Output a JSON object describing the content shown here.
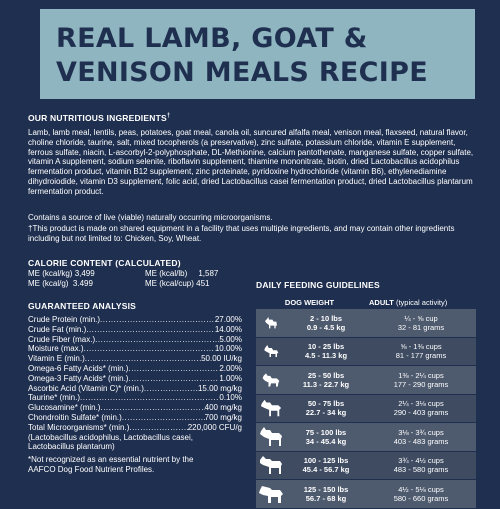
{
  "title": {
    "line1": "REAL LAMB, GOAT &",
    "line2": "VENISON MEALS RECIPE"
  },
  "ingredients": {
    "heading": "OUR NUTRITIOUS INGREDIENTS",
    "heading_mark": "†",
    "text": "Lamb, lamb meal, lentils, peas, potatoes, goat meal, canola oil, suncured alfalfa meal, venison meal, flaxseed, natural flavor, choline chloride, taurine, salt, mixed tocopherols (a preservative), zinc sulfate, potassium chloride, vitamin E supplement, ferrous sulfate, niacin, L-ascorbyl-2-polyphosphate, DL-Methionine, calcium pantothenate, manganese sulfate, copper sulfate, vitamin A supplement, sodium selenite, riboflavin supplement, thiamine mononitrate, biotin, dried Lactobacillus acidophilus fermentation product, vitamin B12 supplement, zinc proteinate, pyridoxine hydrochloride (vitamin B6), ethylenediamine dihydroiodide, vitamin D3 supplement, folic acid, dried Lactobacillus casei fermentation product, dried Lactobacillus plantarum fermentation product.",
    "live_note": "Contains a source of live (viable) naturally occurring microorganisms.",
    "footnote": "†This product is made on shared equipment in a facility that uses multiple ingredients, and may contain other ingredients including but not limited to: Chicken, Soy, Wheat."
  },
  "calorie": {
    "heading": "CALORIE CONTENT (CALCULATED)",
    "rows": [
      {
        "label": "ME (kcal/kg)",
        "value": "3,499"
      },
      {
        "label": "ME (kcal/g)",
        "value": "3.499"
      },
      {
        "label": "ME (kcal/lb)",
        "value": "1,587"
      },
      {
        "label": "ME (kcal/cup)",
        "value": "451"
      }
    ]
  },
  "guaranteed_analysis": {
    "heading": "GUARANTEED ANALYSIS",
    "rows": [
      {
        "label": "Crude Protein (min.)",
        "value": "27.00%"
      },
      {
        "label": "Crude Fat (min.)",
        "value": "14.00%"
      },
      {
        "label": "Crude Fiber (max.)",
        "value": "5.00%"
      },
      {
        "label": "Moisture (max.)",
        "value": "10.00%"
      },
      {
        "label": "Vitamin E (min.)",
        "value": "50.00 IU/kg"
      },
      {
        "label": "Omega-6 Fatty Acids* (min.)",
        "value": "2.00%"
      },
      {
        "label": "Omega-3 Fatty Acids* (min.)",
        "value": "1.00%"
      },
      {
        "label": "Ascorbic Acid (Vitamin C)* (min.)",
        "value": "15.00 mg/kg"
      },
      {
        "label": "Taurine* (min.)",
        "value": "0.10%"
      },
      {
        "label": "Glucosamine* (min.)",
        "value": "400 mg/kg"
      },
      {
        "label": "Chondroitin Sulfate* (min.)",
        "value": "700 mg/kg"
      },
      {
        "label": "Total Microorganisms* (min.)",
        "value": "220,000 CFU/g"
      }
    ],
    "micro_note_1": "(Lactobacillus acidophilus, Lactobacillus casei,",
    "micro_note_2": "Lactobacillus plantarum)",
    "footnote_1": "*Not recognized as an essential nutrient by the",
    "footnote_2": "AAFCO Dog Food Nutrient Profiles."
  },
  "feeding": {
    "heading": "DAILY FEEDING GUIDELINES",
    "col_weight": "DOG WEIGHT",
    "col_adult": "ADULT",
    "col_adult_note": "(typical activity)",
    "rows": [
      {
        "icon": "tiny-dog-icon",
        "lbs": "2 - 10 lbs",
        "kg": "0.9 - 4.5 kg",
        "cups": "¼ - ⅝ cup",
        "grams": "32 - 81 grams"
      },
      {
        "icon": "small-dog-icon",
        "lbs": "10 - 25 lbs",
        "kg": "4.5 - 11.3 kg",
        "cups": "⅝ - 1⅜ cups",
        "grams": "81 - 177 grams"
      },
      {
        "icon": "medium-dog-icon",
        "lbs": "25 - 50 lbs",
        "kg": "11.3 - 22.7 kg",
        "cups": "1⅜ - 2¼ cups",
        "grams": "177 - 290 grams"
      },
      {
        "icon": "large-dog-icon",
        "lbs": "50 - 75 lbs",
        "kg": "22.7 - 34 kg",
        "cups": "2¼ - 3⅛ cups",
        "grams": "290 - 403 grams"
      },
      {
        "icon": "xl-dog-icon",
        "lbs": "75 - 100 lbs",
        "kg": "34 - 45.4 kg",
        "cups": "3⅛ - 3¾ cups",
        "grams": "403 - 483 grams"
      },
      {
        "icon": "giant-dog-icon",
        "lbs": "100 - 125 lbs",
        "kg": "45.4 - 56.7 kg",
        "cups": "3¾ - 4½ cups",
        "grams": "483 - 580 grams"
      },
      {
        "icon": "mastiff-dog-icon",
        "lbs": "125 - 150 lbs",
        "kg": "56.7 - 68 kg",
        "cups": "4½ - 5⅛ cups",
        "grams": "580 - 660 grams"
      }
    ]
  },
  "colors": {
    "background": "#1f2f4f",
    "title_box": "#8fb6c0",
    "row_light": "#4e5a6e",
    "row_dark": "#3e4b61"
  }
}
